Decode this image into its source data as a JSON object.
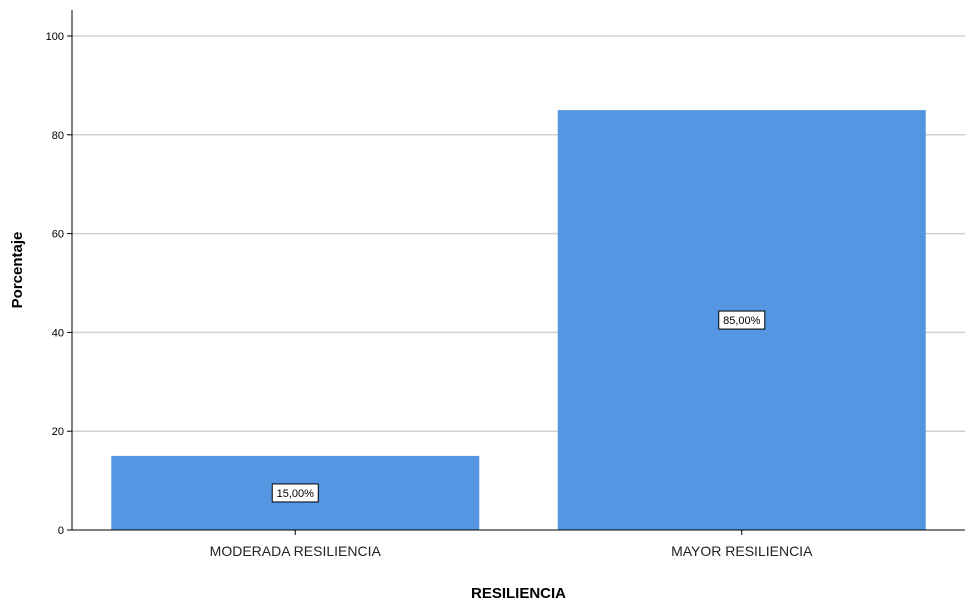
{
  "chart_data": {
    "type": "bar",
    "categories": [
      "MODERADA RESILIENCIA",
      "MAYOR RESILIENCIA"
    ],
    "values": [
      15,
      85
    ],
    "data_labels": [
      "15,00%",
      "85,00%"
    ],
    "xlabel": "RESILIENCIA",
    "ylabel": "Porcentaje",
    "ylim": [
      0,
      100
    ],
    "yticks": [
      0,
      20,
      40,
      60,
      80,
      100
    ],
    "grid": true,
    "bar_color": "#5596e3",
    "grid_color": "#d0d0d0"
  }
}
